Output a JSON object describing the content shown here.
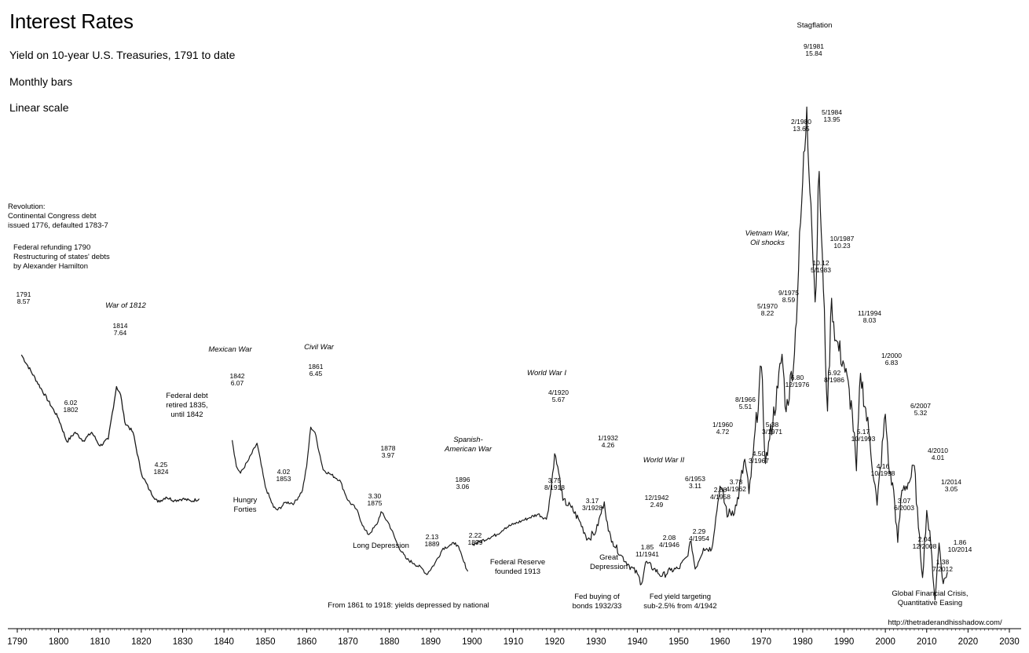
{
  "chart_data": {
    "type": "line",
    "title": "Interest Rates",
    "subtitle": "Yield on 10-year U.S. Treasuries, 1791 to date",
    "subtitle2": "Monthly bars",
    "subtitle3": "Linear scale",
    "xlabel": "",
    "ylabel": "",
    "xlim": [
      1790,
      2030
    ],
    "ylim": [
      0,
      17.5
    ],
    "grid": false,
    "x_ticks": [
      1790,
      1800,
      1810,
      1820,
      1830,
      1840,
      1850,
      1860,
      1870,
      1880,
      1890,
      1900,
      1910,
      1920,
      1930,
      1940,
      1950,
      1960,
      1970,
      1980,
      1990,
      2000,
      2010,
      2020,
      2030
    ],
    "series": [
      {
        "name": "",
        "segments": [
          {
            "x": [
              1791,
              1800,
              1802,
              1804,
              1806,
              1808,
              1810,
              1812,
              1814,
              1815,
              1816,
              1818,
              1820,
              1822,
              1824,
              1826,
              1828,
              1830,
              1832,
              1834
            ],
            "y": [
              8.57,
              6.7,
              6.02,
              6.3,
              6.05,
              6.3,
              5.9,
              6.1,
              7.64,
              7.4,
              6.6,
              6.3,
              5.1,
              4.6,
              4.25,
              4.4,
              4.3,
              4.35,
              4.28,
              4.35
            ]
          },
          {
            "x": [
              1842,
              1843,
              1844,
              1846,
              1848,
              1850,
              1852,
              1853,
              1855,
              1857,
              1859,
              1860,
              1861,
              1862,
              1864,
              1866,
              1868,
              1870,
              1872,
              1874,
              1875,
              1877,
              1878,
              1880,
              1882,
              1884,
              1886,
              1888,
              1889,
              1891,
              1893,
              1895,
              1896,
              1897,
              1898,
              1899
            ],
            "y": [
              6.07,
              5.3,
              5.1,
              5.5,
              5.98,
              4.7,
              4.1,
              4.02,
              4.25,
              4.22,
              4.6,
              5.3,
              6.45,
              6.3,
              5.2,
              5.05,
              4.9,
              4.3,
              4.05,
              3.45,
              3.3,
              3.6,
              3.97,
              3.6,
              3.0,
              2.6,
              2.45,
              2.3,
              2.13,
              2.45,
              2.9,
              3.0,
              3.06,
              2.85,
              2.5,
              2.22
            ]
          },
          {
            "x": [
              1900,
              1902,
              1904,
              1906,
              1908,
              1910,
              1912,
              1914,
              1916,
              1918,
              1919,
              1920,
              1921,
              1922,
              1924,
              1926,
              1928,
              1930,
              1932,
              1933,
              1934,
              1936,
              1938,
              1940,
              1941,
              1942,
              1944,
              1946,
              1948,
              1950,
              1952,
              1953,
              1954,
              1956,
              1958,
              1960,
              1962,
              1964,
              1966,
              1967,
              1968,
              1970,
              1971,
              1972,
              1974,
              1975,
              1976,
              1978,
              1980,
              1981,
              1982,
              1983,
              1984,
              1985,
              1986,
              1987,
              1988,
              1990,
              1992,
              1993,
              1994,
              1996,
              1998,
              2000,
              2001,
              2002,
              2003,
              2004,
              2006,
              2007,
              2008,
              2009,
              2010,
              2011,
              2012,
              2013,
              2014,
              2015
            ],
            "y": [
              3.0,
              3.1,
              3.2,
              3.3,
              3.5,
              3.6,
              3.7,
              3.8,
              3.9,
              3.75,
              4.5,
              5.67,
              5.1,
              4.3,
              4.1,
              3.7,
              3.17,
              3.4,
              4.26,
              3.4,
              3.1,
              2.7,
              2.4,
              2.15,
              1.85,
              2.49,
              2.3,
              2.08,
              2.25,
              2.3,
              2.65,
              3.11,
              2.29,
              2.9,
              2.88,
              4.72,
              3.85,
              4.15,
              5.51,
              4.5,
              5.6,
              8.22,
              5.38,
              6.1,
              7.6,
              8.59,
              6.9,
              8.6,
              13.65,
              15.84,
              13.0,
              10.12,
              13.95,
              10.5,
              6.92,
              10.23,
              9.0,
              8.3,
              6.9,
              5.17,
              8.03,
              6.3,
              4.16,
              6.83,
              5.1,
              4.6,
              3.07,
              4.6,
              4.9,
              5.32,
              3.5,
              2.04,
              4.01,
              3.0,
              1.38,
              3.05,
              1.86,
              2.2
            ]
          }
        ]
      }
    ],
    "annotations": [
      {
        "date": "1791",
        "value": "8.57"
      },
      {
        "date": "6.02",
        "value": "1802"
      },
      {
        "date": "1814",
        "value": "7.64"
      },
      {
        "date": "4.25",
        "value": "1824"
      },
      {
        "date": "1842",
        "value": "6.07"
      },
      {
        "date": "4.02",
        "value": "1853"
      },
      {
        "date": "1861",
        "value": "6.45"
      },
      {
        "date": "3.30",
        "value": "1875"
      },
      {
        "date": "1878",
        "value": "3.97"
      },
      {
        "date": "2.13",
        "value": "1889"
      },
      {
        "date": "1896",
        "value": "3.06"
      },
      {
        "date": "2.22",
        "value": "1899"
      },
      {
        "date": "4/1920",
        "value": "5.67"
      },
      {
        "date": "3.75",
        "value": "8/1918"
      },
      {
        "date": "1/1932",
        "value": "4.26"
      },
      {
        "date": "3.17",
        "value": "3/1928"
      },
      {
        "date": "12/1942",
        "value": "2.49"
      },
      {
        "date": "1.85",
        "value": "11/1941"
      },
      {
        "date": "2.08",
        "value": "4/1946"
      },
      {
        "date": "6/1953",
        "value": "3.11"
      },
      {
        "date": "2.29",
        "value": "4/1954"
      },
      {
        "date": "2.88",
        "value": "4/1958"
      },
      {
        "date": "1/1960",
        "value": "4.72"
      },
      {
        "date": "3.78",
        "value": "4/1962"
      },
      {
        "date": "8/1966",
        "value": "5.51"
      },
      {
        "date": "4.50",
        "value": "3/1967"
      },
      {
        "date": "5.38",
        "value": "3/1971"
      },
      {
        "date": "5/1970",
        "value": "8.22"
      },
      {
        "date": "9/1975",
        "value": "8.59"
      },
      {
        "date": "6.80",
        "value": "12/1976"
      },
      {
        "date": "2/1980",
        "value": "13.65"
      },
      {
        "date": "9/1981",
        "value": "15.84"
      },
      {
        "date": "5/1984",
        "value": "13.95"
      },
      {
        "date": "10.12",
        "value": "5/1983"
      },
      {
        "date": "10/1987",
        "value": "10.23"
      },
      {
        "date": "6.92",
        "value": "8/1986"
      },
      {
        "date": "11/1994",
        "value": "8.03"
      },
      {
        "date": "5.17",
        "value": "10/1993"
      },
      {
        "date": "1/2000",
        "value": "6.83"
      },
      {
        "date": "4.16",
        "value": "10/1998"
      },
      {
        "date": "3.07",
        "value": "6/2003"
      },
      {
        "date": "6/2007",
        "value": "5.32"
      },
      {
        "date": "4/2010",
        "value": "4.01"
      },
      {
        "date": "2.04",
        "value": "12/2008"
      },
      {
        "date": "1/2014",
        "value": "3.05"
      },
      {
        "date": "1.38",
        "value": "7/2012"
      },
      {
        "date": "1.86",
        "value": "10/2014"
      }
    ],
    "events": [
      {
        "lines": [
          "War of 1812"
        ],
        "italic": true
      },
      {
        "lines": [
          "Mexican War"
        ],
        "italic": true
      },
      {
        "lines": [
          "Civil War"
        ],
        "italic": true
      },
      {
        "lines": [
          "World War I"
        ],
        "italic": true
      },
      {
        "lines": [
          "Spanish-",
          "American War"
        ],
        "italic": true
      },
      {
        "lines": [
          "World War II"
        ],
        "italic": true
      },
      {
        "lines": [
          "Vietnam War,",
          "Oil shocks"
        ],
        "italic": true
      },
      {
        "lines": [
          "Stagflation"
        ],
        "italic": false
      },
      {
        "lines": [
          "Revolution:",
          "Continental Congress debt",
          "issued 1776, defaulted 1783-7"
        ],
        "italic": false
      },
      {
        "lines": [
          "Federal refunding 1790",
          "Restructuring of states' debts",
          "by Alexander Hamilton"
        ],
        "italic": false
      },
      {
        "lines": [
          "Federal debt",
          "retired 1835,",
          "until 1842"
        ],
        "italic": false
      },
      {
        "lines": [
          "Hungry",
          "Forties"
        ],
        "italic": false
      },
      {
        "lines": [
          "Long Depression"
        ],
        "italic": false
      },
      {
        "lines": [
          "Federal Reserve",
          "founded 1913"
        ],
        "italic": false
      },
      {
        "lines": [
          "Great",
          "Depression"
        ],
        "italic": false
      },
      {
        "lines": [
          "Fed buying of",
          "bonds 1932/33"
        ],
        "italic": false
      },
      {
        "lines": [
          "Fed yield targeting",
          "sub-2.5% from 4/1942"
        ],
        "italic": false
      },
      {
        "lines": [
          "From 1861 to 1918: yields depressed by national"
        ],
        "italic": false
      },
      {
        "lines": [
          "Global Financial Crisis,",
          "Quantitative Easing"
        ],
        "italic": false
      },
      {
        "lines": [
          "http://thetraderandhisshadow.com/"
        ],
        "italic": false
      }
    ]
  }
}
